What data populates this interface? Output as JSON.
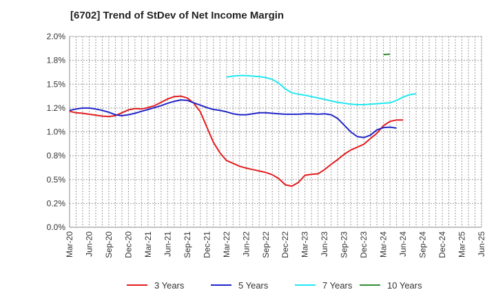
{
  "chart_data": {
    "type": "line",
    "title": "[6702]  Trend of StDev of Net Income Margin",
    "xlabel": "",
    "ylabel": "",
    "x_tick_labels": [
      "Mar-20",
      "Jun-20",
      "Sep-20",
      "Dec-20",
      "Mar-21",
      "Jun-21",
      "Sep-21",
      "Dec-21",
      "Mar-22",
      "Jun-22",
      "Sep-22",
      "Dec-22",
      "Mar-23",
      "Jun-23",
      "Sep-23",
      "Dec-23",
      "Mar-24",
      "Jun-24",
      "Sep-24",
      "Dec-24",
      "Mar-25",
      "Jun-25"
    ],
    "y_tick_labels": [
      "0.0%",
      "0.2%",
      "0.5%",
      "0.8%",
      "1.0%",
      "1.2%",
      "1.5%",
      "1.8%",
      "2.0%"
    ],
    "ylim": [
      0,
      2.0
    ],
    "grid": true,
    "legend_position": "bottom",
    "series": [
      {
        "name": "3 Years",
        "color": "#e31a1c",
        "values": [
          [
            0,
            1.215
          ],
          [
            1,
            1.2
          ],
          [
            2,
            1.195
          ],
          [
            3,
            1.185
          ],
          [
            4,
            1.175
          ],
          [
            5,
            1.165
          ],
          [
            6,
            1.16
          ],
          [
            7,
            1.17
          ],
          [
            8,
            1.2
          ],
          [
            9,
            1.23
          ],
          [
            10,
            1.245
          ],
          [
            11,
            1.24
          ],
          [
            12,
            1.255
          ],
          [
            13,
            1.275
          ],
          [
            14,
            1.31
          ],
          [
            15,
            1.345
          ],
          [
            16,
            1.37
          ],
          [
            17,
            1.375
          ],
          [
            18,
            1.355
          ],
          [
            19,
            1.3
          ],
          [
            20,
            1.21
          ],
          [
            21,
            1.05
          ],
          [
            22,
            0.89
          ],
          [
            23,
            0.78
          ],
          [
            24,
            0.7
          ],
          [
            25,
            0.67
          ],
          [
            26,
            0.64
          ],
          [
            27,
            0.62
          ],
          [
            28,
            0.605
          ],
          [
            29,
            0.59
          ],
          [
            30,
            0.575
          ],
          [
            31,
            0.55
          ],
          [
            32,
            0.51
          ],
          [
            33,
            0.445
          ],
          [
            34,
            0.43
          ],
          [
            35,
            0.47
          ],
          [
            36,
            0.545
          ],
          [
            37,
            0.555
          ],
          [
            38,
            0.56
          ],
          [
            39,
            0.605
          ],
          [
            40,
            0.66
          ],
          [
            41,
            0.71
          ],
          [
            42,
            0.765
          ],
          [
            43,
            0.81
          ],
          [
            44,
            0.84
          ],
          [
            45,
            0.87
          ],
          [
            46,
            0.93
          ],
          [
            47,
            0.985
          ],
          [
            48,
            1.065
          ],
          [
            49,
            1.11
          ],
          [
            50,
            1.125
          ],
          [
            51,
            1.125
          ]
        ]
      },
      {
        "name": "5 Years",
        "color": "#1f23c8",
        "values": [
          [
            0,
            1.225
          ],
          [
            1,
            1.24
          ],
          [
            2,
            1.25
          ],
          [
            3,
            1.25
          ],
          [
            4,
            1.24
          ],
          [
            5,
            1.225
          ],
          [
            6,
            1.205
          ],
          [
            7,
            1.18
          ],
          [
            8,
            1.17
          ],
          [
            9,
            1.18
          ],
          [
            10,
            1.195
          ],
          [
            11,
            1.215
          ],
          [
            12,
            1.235
          ],
          [
            13,
            1.255
          ],
          [
            14,
            1.275
          ],
          [
            15,
            1.3
          ],
          [
            16,
            1.32
          ],
          [
            17,
            1.335
          ],
          [
            18,
            1.33
          ],
          [
            19,
            1.305
          ],
          [
            20,
            1.28
          ],
          [
            21,
            1.255
          ],
          [
            22,
            1.235
          ],
          [
            23,
            1.225
          ],
          [
            24,
            1.21
          ],
          [
            25,
            1.19
          ],
          [
            26,
            1.18
          ],
          [
            27,
            1.18
          ],
          [
            28,
            1.19
          ],
          [
            29,
            1.2
          ],
          [
            30,
            1.2
          ],
          [
            31,
            1.195
          ],
          [
            32,
            1.19
          ],
          [
            33,
            1.185
          ],
          [
            34,
            1.185
          ],
          [
            35,
            1.185
          ],
          [
            36,
            1.19
          ],
          [
            37,
            1.19
          ],
          [
            38,
            1.185
          ],
          [
            39,
            1.19
          ],
          [
            40,
            1.18
          ],
          [
            41,
            1.14
          ],
          [
            42,
            1.07
          ],
          [
            43,
            1.0
          ],
          [
            44,
            0.95
          ],
          [
            45,
            0.94
          ],
          [
            46,
            0.965
          ],
          [
            47,
            1.02
          ],
          [
            48,
            1.045
          ],
          [
            49,
            1.05
          ],
          [
            50,
            1.04
          ]
        ]
      },
      {
        "name": "7 Years",
        "color": "#1ee8f0",
        "values": [
          [
            24,
            1.575
          ],
          [
            25,
            1.585
          ],
          [
            26,
            1.59
          ],
          [
            27,
            1.59
          ],
          [
            28,
            1.585
          ],
          [
            29,
            1.58
          ],
          [
            30,
            1.57
          ],
          [
            31,
            1.55
          ],
          [
            32,
            1.51
          ],
          [
            33,
            1.45
          ],
          [
            34,
            1.41
          ],
          [
            35,
            1.395
          ],
          [
            36,
            1.385
          ],
          [
            37,
            1.37
          ],
          [
            38,
            1.355
          ],
          [
            39,
            1.34
          ],
          [
            40,
            1.325
          ],
          [
            41,
            1.31
          ],
          [
            42,
            1.3
          ],
          [
            43,
            1.29
          ],
          [
            44,
            1.285
          ],
          [
            45,
            1.285
          ],
          [
            46,
            1.29
          ],
          [
            47,
            1.295
          ],
          [
            48,
            1.3
          ],
          [
            49,
            1.305
          ],
          [
            50,
            1.33
          ],
          [
            51,
            1.365
          ],
          [
            52,
            1.39
          ],
          [
            53,
            1.4
          ]
        ]
      },
      {
        "name": "10 Years",
        "color": "#2e8b2e",
        "values": [
          [
            48,
            1.81
          ],
          [
            49,
            1.815
          ]
        ]
      }
    ]
  }
}
